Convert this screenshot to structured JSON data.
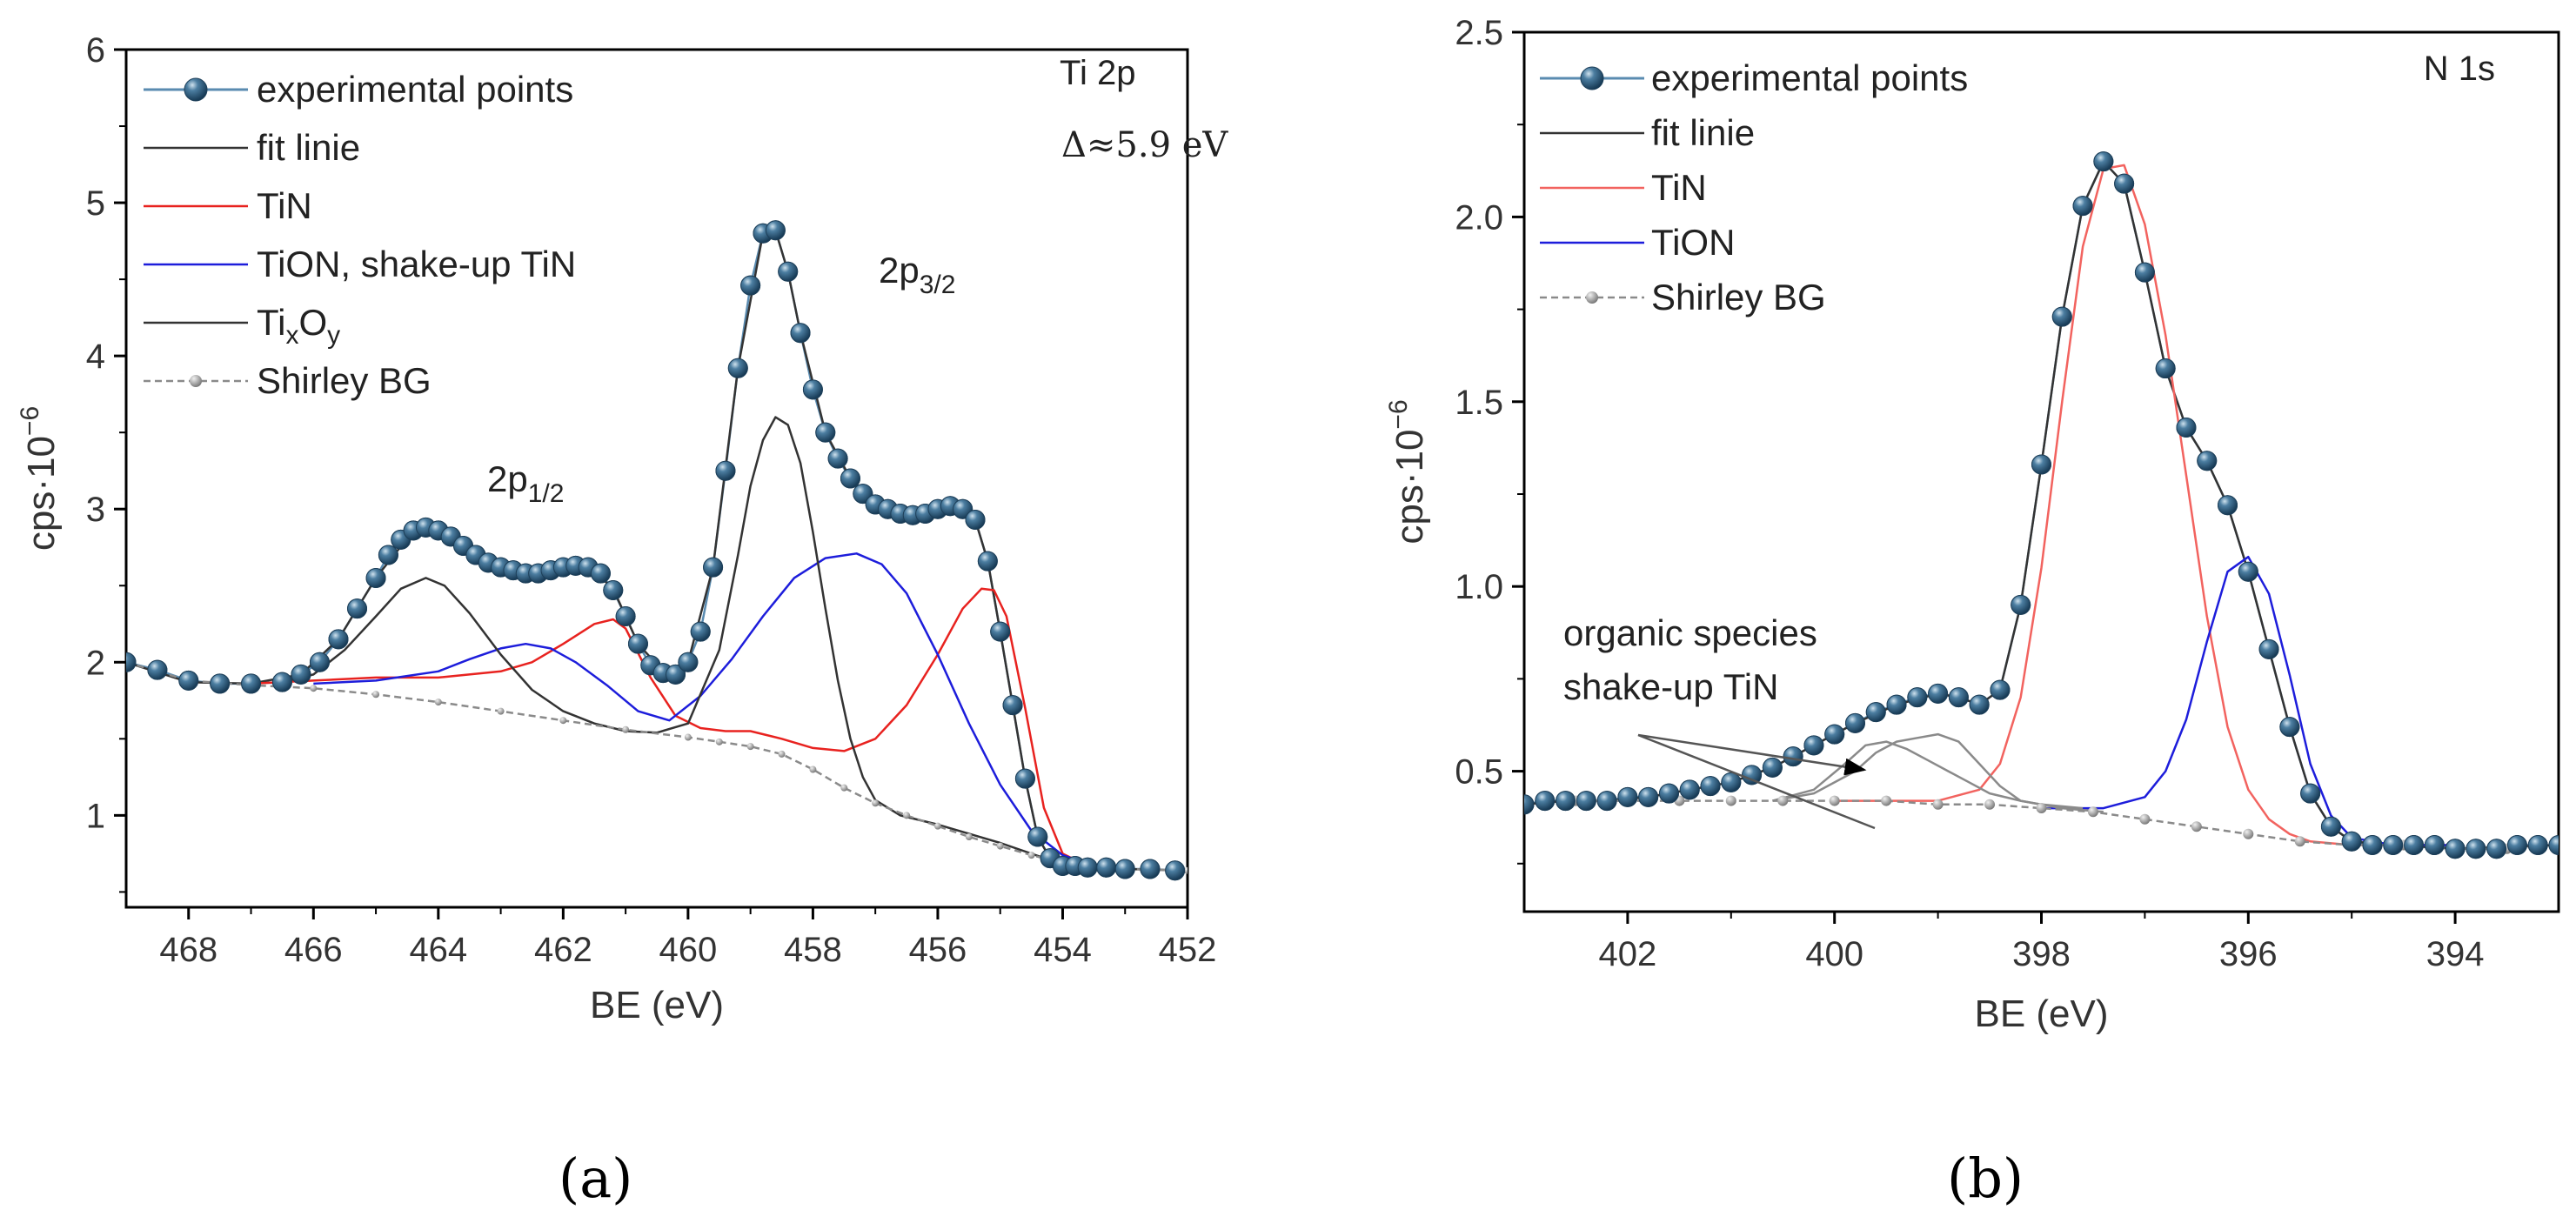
{
  "captions": {
    "a": "(a)",
    "b": "(b)"
  },
  "chart_data": [
    {
      "type": "line",
      "title": "Ti 2p",
      "subtitle": "Δ≈5.9 eV",
      "xlabel": "BE (eV)",
      "ylabel": "cps·10",
      "ylabel_exp": "−6",
      "xlim": [
        469,
        452
      ],
      "ylim": [
        0.4,
        6
      ],
      "xticks": [
        468,
        466,
        464,
        462,
        460,
        458,
        456,
        454,
        452
      ],
      "yticks": [
        1,
        2,
        3,
        4,
        5,
        6
      ],
      "annotations": [
        {
          "text": "2p",
          "sub": "1/2",
          "x": 462.3,
          "y": 3.1
        },
        {
          "text": "2p",
          "sub": "3/2",
          "x": 456.3,
          "y": 4.4
        }
      ],
      "legend": {
        "position": "top-left",
        "entries": [
          {
            "label": "experimental points",
            "style": "points",
            "color": "#2a5a7c"
          },
          {
            "label": "fit linie",
            "style": "line",
            "color": "#333333"
          },
          {
            "label": "TiN",
            "style": "line",
            "color": "#e8221f"
          },
          {
            "label": "TiON, shake-up TiN",
            "style": "line",
            "color": "#1d1ddb"
          },
          {
            "label": "Ti",
            "sub1": "x",
            "mid": "O",
            "sub2": "y",
            "style": "line",
            "color": "#333333"
          },
          {
            "label": "Shirley BG",
            "style": "dashed-points",
            "color": "#8a8a8a"
          }
        ]
      },
      "series": [
        {
          "name": "experimental points",
          "color": "#2a5a7c",
          "x": [
            469.0,
            468.5,
            468.0,
            467.5,
            467.0,
            466.5,
            466.2,
            465.9,
            465.6,
            465.3,
            465.0,
            464.8,
            464.6,
            464.4,
            464.2,
            464.0,
            463.8,
            463.6,
            463.4,
            463.2,
            463.0,
            462.8,
            462.6,
            462.4,
            462.2,
            462.0,
            461.8,
            461.6,
            461.4,
            461.2,
            461.0,
            460.8,
            460.6,
            460.4,
            460.2,
            460.0,
            459.8,
            459.6,
            459.4,
            459.2,
            459.0,
            458.8,
            458.6,
            458.4,
            458.2,
            458.0,
            457.8,
            457.6,
            457.4,
            457.2,
            457.0,
            456.8,
            456.6,
            456.4,
            456.2,
            456.0,
            455.8,
            455.6,
            455.4,
            455.2,
            455.0,
            454.8,
            454.6,
            454.4,
            454.2,
            454.0,
            453.8,
            453.6,
            453.3,
            453.0,
            452.6,
            452.2
          ],
          "values": [
            2.0,
            1.95,
            1.88,
            1.86,
            1.86,
            1.87,
            1.92,
            2.0,
            2.15,
            2.35,
            2.55,
            2.7,
            2.8,
            2.86,
            2.88,
            2.86,
            2.82,
            2.76,
            2.7,
            2.65,
            2.62,
            2.6,
            2.58,
            2.58,
            2.6,
            2.62,
            2.63,
            2.62,
            2.58,
            2.47,
            2.3,
            2.12,
            1.98,
            1.93,
            1.92,
            2.0,
            2.2,
            2.62,
            3.25,
            3.92,
            4.46,
            4.8,
            4.82,
            4.55,
            4.15,
            3.78,
            3.5,
            3.33,
            3.2,
            3.1,
            3.03,
            3.0,
            2.97,
            2.96,
            2.97,
            3.0,
            3.02,
            3.0,
            2.93,
            2.66,
            2.2,
            1.72,
            1.24,
            0.86,
            0.72,
            0.67,
            0.67,
            0.66,
            0.66,
            0.65,
            0.65,
            0.64
          ]
        },
        {
          "name": "fit linie",
          "color": "#333333",
          "x": [
            469.0,
            468.0,
            467.0,
            466.2,
            465.6,
            465.0,
            464.4,
            464.0,
            463.6,
            463.0,
            462.4,
            462.0,
            461.6,
            461.2,
            460.8,
            460.4,
            460.0,
            459.6,
            459.2,
            458.8,
            458.6,
            458.4,
            458.2,
            457.8,
            457.4,
            457.0,
            456.6,
            456.2,
            455.8,
            455.4,
            455.2,
            455.0,
            454.8,
            454.6,
            454.4,
            454.2,
            454.0,
            453.6,
            453.0,
            452.0
          ],
          "values": [
            2.0,
            1.87,
            1.86,
            1.92,
            2.15,
            2.55,
            2.86,
            2.87,
            2.77,
            2.63,
            2.58,
            2.62,
            2.63,
            2.48,
            2.12,
            1.94,
            2.0,
            2.62,
            3.92,
            4.8,
            4.82,
            4.55,
            4.15,
            3.5,
            3.2,
            3.03,
            2.97,
            2.97,
            3.02,
            2.93,
            2.66,
            2.2,
            1.72,
            1.24,
            0.86,
            0.72,
            0.67,
            0.66,
            0.65,
            0.64
          ]
        },
        {
          "name": "TiN",
          "color": "#e8221f",
          "x": [
            467.0,
            466.0,
            465.0,
            464.0,
            463.0,
            462.5,
            462.0,
            461.5,
            461.2,
            461.0,
            460.6,
            460.2,
            459.8,
            459.4,
            459.0,
            458.5,
            458.0,
            457.5,
            457.0,
            456.5,
            456.0,
            455.6,
            455.3,
            455.1,
            454.9,
            454.6,
            454.3,
            454.0,
            453.6,
            453.0
          ],
          "values": [
            1.86,
            1.88,
            1.9,
            1.9,
            1.94,
            2.0,
            2.12,
            2.25,
            2.28,
            2.22,
            1.9,
            1.65,
            1.57,
            1.55,
            1.55,
            1.5,
            1.44,
            1.42,
            1.5,
            1.72,
            2.05,
            2.35,
            2.48,
            2.47,
            2.3,
            1.7,
            1.05,
            0.75,
            0.67,
            0.65
          ]
        },
        {
          "name": "TiON, shake-up TiN",
          "color": "#1d1ddb",
          "x": [
            466.0,
            465.0,
            464.0,
            463.5,
            463.0,
            462.6,
            462.2,
            461.8,
            461.3,
            460.8,
            460.3,
            459.8,
            459.3,
            458.8,
            458.3,
            457.8,
            457.3,
            456.9,
            456.5,
            456.0,
            455.5,
            455.0,
            454.5,
            454.0,
            453.5,
            453.0
          ],
          "values": [
            1.86,
            1.88,
            1.94,
            2.02,
            2.09,
            2.12,
            2.09,
            2.0,
            1.85,
            1.68,
            1.62,
            1.78,
            2.02,
            2.3,
            2.55,
            2.68,
            2.71,
            2.64,
            2.45,
            2.05,
            1.6,
            1.2,
            0.9,
            0.74,
            0.67,
            0.65
          ]
        },
        {
          "name": "TixOy",
          "color": "#333333",
          "x": [
            466.5,
            466.0,
            465.5,
            465.0,
            464.6,
            464.2,
            463.9,
            463.5,
            463.0,
            462.5,
            462.0,
            461.5,
            461.0,
            460.5,
            460.0,
            459.5,
            459.2,
            459.0,
            458.8,
            458.6,
            458.4,
            458.2,
            458.0,
            457.8,
            457.6,
            457.4,
            457.2,
            457.0,
            456.6,
            456.0,
            455.0,
            454.0
          ],
          "values": [
            1.87,
            1.92,
            2.08,
            2.3,
            2.48,
            2.55,
            2.5,
            2.32,
            2.05,
            1.82,
            1.68,
            1.6,
            1.55,
            1.54,
            1.6,
            2.08,
            2.7,
            3.15,
            3.45,
            3.6,
            3.55,
            3.3,
            2.85,
            2.35,
            1.88,
            1.5,
            1.25,
            1.1,
            1.0,
            0.94,
            0.82,
            0.68
          ]
        },
        {
          "name": "Shirley BG",
          "color": "#8a8a8a",
          "x": [
            469.0,
            468.0,
            467.0,
            466.0,
            465.0,
            464.0,
            463.0,
            462.0,
            461.0,
            460.0,
            459.5,
            459.0,
            458.5,
            458.0,
            457.5,
            457.0,
            456.5,
            456.0,
            455.5,
            455.0,
            454.5,
            454.0,
            453.5,
            453.0,
            452.0
          ],
          "values": [
            2.0,
            1.88,
            1.85,
            1.83,
            1.79,
            1.74,
            1.68,
            1.62,
            1.56,
            1.51,
            1.48,
            1.45,
            1.4,
            1.3,
            1.18,
            1.08,
            1.0,
            0.93,
            0.86,
            0.8,
            0.74,
            0.69,
            0.66,
            0.65,
            0.64
          ]
        }
      ]
    },
    {
      "type": "line",
      "title": "N 1s",
      "xlabel": "BE (eV)",
      "ylabel": "cps·10",
      "ylabel_exp": "−6",
      "xlim": [
        403,
        393
      ],
      "ylim": [
        0.12,
        2.5
      ],
      "xticks": [
        402,
        400,
        398,
        396,
        394
      ],
      "yticks": [
        0.5,
        1.0,
        1.5,
        2.0,
        2.5
      ],
      "yticklabels": [
        "0.5",
        "1.0",
        "1.5",
        "2.0",
        "2.5"
      ],
      "annotations": [
        {
          "text": "organic species",
          "x": 401.1,
          "y": 0.76
        },
        {
          "text": "shake-up TiN",
          "x": 401.1,
          "y": 0.62
        }
      ],
      "legend": {
        "position": "top-left",
        "entries": [
          {
            "label": "experimental points",
            "style": "points",
            "color": "#2a5a7c"
          },
          {
            "label": "fit linie",
            "style": "line",
            "color": "#333333"
          },
          {
            "label": "TiN",
            "style": "line",
            "color": "#f2635f"
          },
          {
            "label": "TiON",
            "style": "line",
            "color": "#1d1ddb"
          },
          {
            "label": "Shirley BG",
            "style": "dashed-points",
            "color": "#8a8a8a"
          }
        ]
      },
      "series": [
        {
          "name": "experimental points",
          "color": "#2a5a7c",
          "x": [
            403.0,
            402.8,
            402.6,
            402.4,
            402.2,
            402.0,
            401.8,
            401.6,
            401.4,
            401.2,
            401.0,
            400.8,
            400.6,
            400.4,
            400.2,
            400.0,
            399.8,
            399.6,
            399.4,
            399.2,
            399.0,
            398.8,
            398.6,
            398.4,
            398.2,
            398.0,
            397.8,
            397.6,
            397.4,
            397.2,
            397.0,
            396.8,
            396.6,
            396.4,
            396.2,
            396.0,
            395.8,
            395.6,
            395.4,
            395.2,
            395.0,
            394.8,
            394.6,
            394.4,
            394.2,
            394.0,
            393.8,
            393.6,
            393.4,
            393.2,
            393.0
          ],
          "values": [
            0.41,
            0.42,
            0.42,
            0.42,
            0.42,
            0.43,
            0.43,
            0.44,
            0.45,
            0.46,
            0.47,
            0.49,
            0.51,
            0.54,
            0.57,
            0.6,
            0.63,
            0.66,
            0.68,
            0.7,
            0.71,
            0.7,
            0.68,
            0.72,
            0.95,
            1.33,
            1.73,
            2.03,
            2.15,
            2.09,
            1.85,
            1.59,
            1.43,
            1.34,
            1.22,
            1.04,
            0.83,
            0.62,
            0.44,
            0.35,
            0.31,
            0.3,
            0.3,
            0.3,
            0.3,
            0.29,
            0.29,
            0.29,
            0.3,
            0.3,
            0.3
          ]
        },
        {
          "name": "fit linie",
          "color": "#333333",
          "x": [
            403.0,
            402.6,
            402.2,
            401.8,
            401.4,
            401.0,
            400.6,
            400.2,
            399.8,
            399.4,
            399.0,
            398.8,
            398.6,
            398.4,
            398.2,
            398.0,
            397.8,
            397.6,
            397.4,
            397.2,
            397.0,
            396.8,
            396.6,
            396.4,
            396.2,
            396.0,
            395.8,
            395.6,
            395.4,
            395.2,
            395.0,
            394.6,
            394.0,
            393.0
          ],
          "values": [
            0.41,
            0.42,
            0.42,
            0.43,
            0.45,
            0.47,
            0.51,
            0.57,
            0.63,
            0.68,
            0.71,
            0.7,
            0.68,
            0.72,
            0.95,
            1.33,
            1.73,
            2.03,
            2.15,
            2.09,
            1.85,
            1.59,
            1.43,
            1.34,
            1.22,
            1.04,
            0.83,
            0.62,
            0.44,
            0.35,
            0.31,
            0.3,
            0.29,
            0.3
          ]
        },
        {
          "name": "TiN",
          "color": "#f2635f",
          "x": [
            400.0,
            399.0,
            398.6,
            398.4,
            398.2,
            398.0,
            397.8,
            397.6,
            397.4,
            397.2,
            397.0,
            396.8,
            396.6,
            396.4,
            396.2,
            396.0,
            395.8,
            395.6,
            395.4,
            395.0,
            394.0
          ],
          "values": [
            0.42,
            0.42,
            0.45,
            0.52,
            0.7,
            1.05,
            1.5,
            1.92,
            2.13,
            2.14,
            1.98,
            1.68,
            1.3,
            0.92,
            0.62,
            0.45,
            0.37,
            0.33,
            0.31,
            0.3,
            0.3
          ]
        },
        {
          "name": "TiON",
          "color": "#1d1ddb",
          "x": [
            398.0,
            397.4,
            397.0,
            396.8,
            396.6,
            396.4,
            396.2,
            396.0,
            395.8,
            395.6,
            395.4,
            395.2,
            395.0,
            394.6,
            394.0
          ],
          "values": [
            0.4,
            0.4,
            0.43,
            0.5,
            0.64,
            0.85,
            1.04,
            1.08,
            0.98,
            0.76,
            0.52,
            0.38,
            0.32,
            0.3,
            0.3
          ]
        },
        {
          "name": "organic species",
          "color": "#8a8a8a",
          "x": [
            400.6,
            400.2,
            399.8,
            399.6,
            399.4,
            399.2,
            399.0,
            398.8,
            398.6,
            398.4,
            398.2,
            398.0,
            397.6
          ],
          "values": [
            0.42,
            0.44,
            0.5,
            0.55,
            0.58,
            0.59,
            0.6,
            0.58,
            0.52,
            0.46,
            0.42,
            0.41,
            0.4
          ]
        },
        {
          "name": "shake-up TiN",
          "color": "#8a8a8a",
          "x": [
            400.6,
            400.2,
            399.9,
            399.7,
            399.5,
            399.3,
            399.1,
            398.9,
            398.7,
            398.5,
            398.2,
            397.8,
            397.4
          ],
          "values": [
            0.42,
            0.45,
            0.52,
            0.57,
            0.58,
            0.56,
            0.53,
            0.5,
            0.47,
            0.44,
            0.42,
            0.4,
            0.39
          ]
        },
        {
          "name": "Shirley BG",
          "color": "#8a8a8a",
          "x": [
            403.0,
            402.5,
            402.0,
            401.5,
            401.0,
            400.5,
            400.0,
            399.5,
            399.0,
            398.5,
            398.0,
            397.5,
            397.0,
            396.5,
            396.0,
            395.5,
            395.0,
            394.5,
            394.0,
            393.5,
            393.0
          ],
          "values": [
            0.41,
            0.42,
            0.42,
            0.42,
            0.42,
            0.42,
            0.42,
            0.42,
            0.41,
            0.41,
            0.4,
            0.39,
            0.37,
            0.35,
            0.33,
            0.31,
            0.3,
            0.3,
            0.29,
            0.29,
            0.3
          ]
        }
      ]
    }
  ]
}
